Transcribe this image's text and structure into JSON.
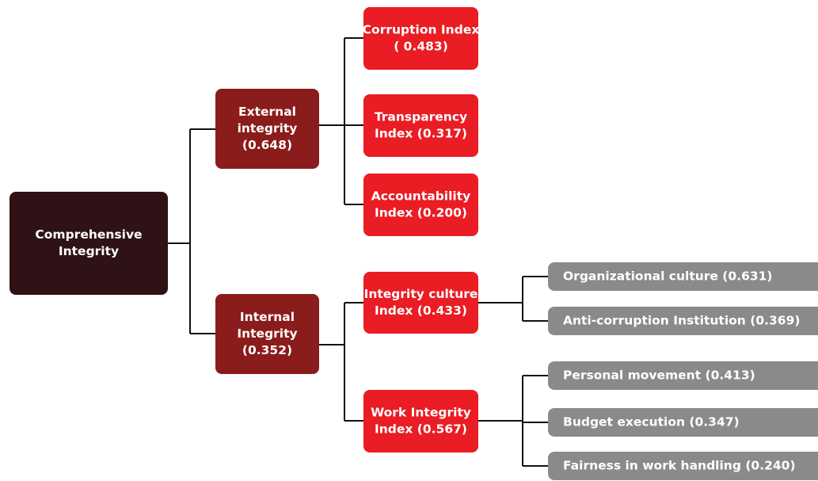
{
  "nodes": [
    {
      "lines": [
        "Comprehensive",
        "Integrity"
      ]
    },
    {
      "lines": [
        "External",
        "integrity",
        "(0.648)"
      ]
    },
    {
      "lines": [
        "Internal",
        "Integrity",
        "(0.352)"
      ]
    },
    {
      "lines": [
        "Corruption Index",
        "( 0.483)"
      ]
    },
    {
      "lines": [
        "Transparency",
        "Index (0.317)"
      ]
    },
    {
      "lines": [
        "Accountability",
        "Index (0.200)"
      ]
    },
    {
      "lines": [
        "Integrity culture",
        "Index (0.433)"
      ]
    },
    {
      "lines": [
        "Work Integrity",
        "Index (0.567)"
      ]
    },
    {
      "lines": [
        "Organizational culture (0.631)"
      ]
    },
    {
      "lines": [
        "Anti-corruption Institution (0.369)"
      ]
    },
    {
      "lines": [
        "Personal movement (0.413)"
      ]
    },
    {
      "lines": [
        "Budget execution (0.347)"
      ]
    },
    {
      "lines": [
        "Fairness in work handling (0.240)"
      ]
    }
  ]
}
